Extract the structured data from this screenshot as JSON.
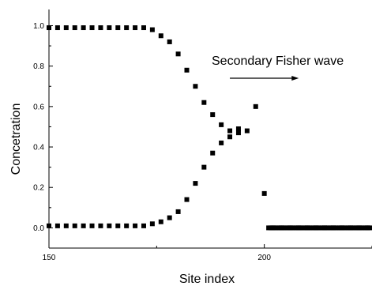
{
  "chart_data": {
    "type": "scatter",
    "xlabel": "Site index",
    "ylabel": "Concetration",
    "xlim": [
      150,
      225
    ],
    "ylim": [
      -0.1,
      1.08
    ],
    "xticks": [
      "150",
      "200"
    ],
    "yticks": [
      "0.0",
      "0.2",
      "0.4",
      "0.6",
      "0.8",
      "1.0"
    ],
    "annotation": "Secondary Fisher wave",
    "annotation_arrow": {
      "from_x": 192,
      "to_x": 208,
      "y": 0.74
    },
    "grid": false,
    "marker": "square",
    "series": [
      {
        "x": [
          150,
          152,
          154,
          156,
          158,
          160,
          162,
          164,
          166,
          168,
          170,
          172,
          174,
          176,
          178,
          180,
          182,
          184,
          186,
          188,
          190,
          192,
          194,
          196,
          198,
          200,
          202,
          204,
          206,
          208,
          210,
          212,
          214,
          216,
          218,
          220,
          222,
          224
        ],
        "values": [
          0.99,
          0.99,
          0.99,
          0.99,
          0.99,
          0.99,
          0.99,
          0.99,
          0.99,
          0.99,
          0.99,
          0.99,
          0.98,
          0.95,
          0.92,
          0.86,
          0.78,
          0.7,
          0.62,
          0.56,
          0.51,
          0.48,
          0.47,
          0.48,
          0.6,
          0.17,
          0.0,
          0.0,
          0.0,
          0.0,
          0.0,
          0.0,
          0.0,
          0.0,
          0.0,
          0.0,
          0.0,
          0.0
        ]
      },
      {
        "x": [
          150,
          152,
          154,
          156,
          158,
          160,
          162,
          164,
          166,
          168,
          170,
          172,
          174,
          176,
          178,
          180,
          182,
          184,
          186,
          188,
          190,
          192,
          194
        ],
        "values": [
          0.01,
          0.01,
          0.01,
          0.01,
          0.01,
          0.01,
          0.01,
          0.01,
          0.01,
          0.01,
          0.01,
          0.01,
          0.02,
          0.03,
          0.05,
          0.08,
          0.14,
          0.22,
          0.3,
          0.37,
          0.42,
          0.45,
          0.49
        ]
      }
    ]
  }
}
